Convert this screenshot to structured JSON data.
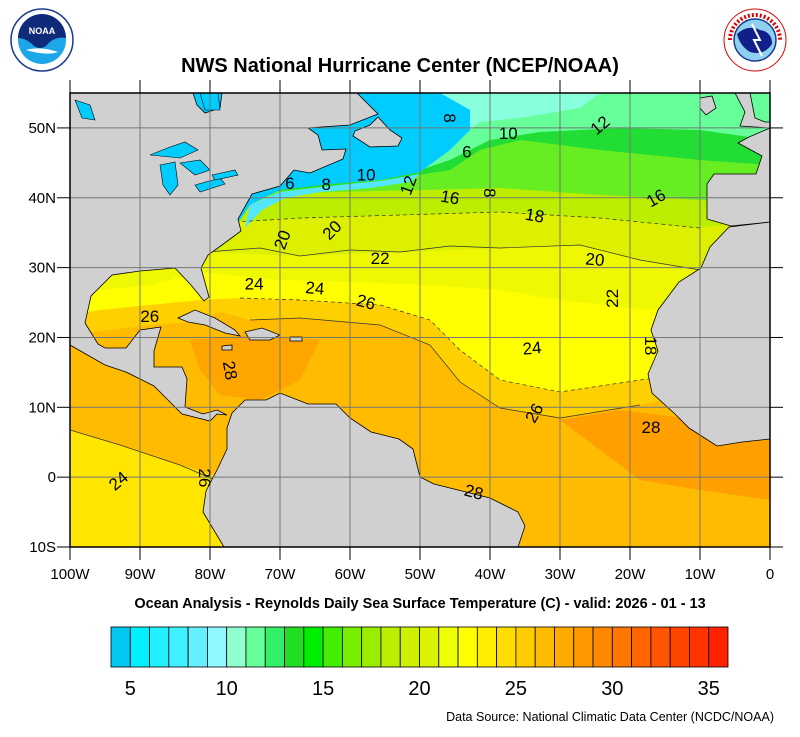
{
  "header": {
    "title": "NWS National Hurricane Center (NCEP/NOAA)",
    "left_logo": {
      "icon": "noaa-logo",
      "text": "NOAA"
    },
    "right_logo": {
      "icon": "nws-logo",
      "text": "NATIONAL WEATHER SERVICE"
    }
  },
  "map": {
    "lon_range": [
      -100,
      0
    ],
    "lat_range": [
      -10,
      55
    ],
    "grid": true,
    "land_color": "#d0d0d0",
    "lat_labels": [
      "50N",
      "40N",
      "30N",
      "20N",
      "10N",
      "0",
      "10S"
    ],
    "lat_values": [
      50,
      40,
      30,
      20,
      10,
      0,
      -10
    ],
    "lon_labels": [
      "100W",
      "90W",
      "80W",
      "70W",
      "60W",
      "50W",
      "40W",
      "30W",
      "20W",
      "10W",
      "0"
    ],
    "lon_values": [
      -100,
      -90,
      -80,
      -70,
      -60,
      -50,
      -40,
      -30,
      -20,
      -10,
      0
    ],
    "contour_labels": [
      {
        "text": "8",
        "lon": -45.7,
        "lat": 51.4,
        "rot": 90
      },
      {
        "text": "10",
        "lon": -37.4,
        "lat": 49.3,
        "rot": 0
      },
      {
        "text": "12",
        "lon": -24.3,
        "lat": 50.4,
        "rot": -40
      },
      {
        "text": "6",
        "lon": -43.3,
        "lat": 46.6,
        "rot": 0
      },
      {
        "text": "6",
        "lon": -68.6,
        "lat": 42.1,
        "rot": 0
      },
      {
        "text": "8",
        "lon": -63.4,
        "lat": 42.0,
        "rot": 0
      },
      {
        "text": "10",
        "lon": -57.7,
        "lat": 43.3,
        "rot": 0
      },
      {
        "text": "12",
        "lon": -51.7,
        "lat": 41.8,
        "rot": -70
      },
      {
        "text": "16",
        "lon": -45.7,
        "lat": 40.1,
        "rot": 10
      },
      {
        "text": "8",
        "lon": -40.0,
        "lat": 40.7,
        "rot": 90
      },
      {
        "text": "16",
        "lon": -16.3,
        "lat": 40.0,
        "rot": -30
      },
      {
        "text": "18",
        "lon": -33.6,
        "lat": 37.5,
        "rot": 10
      },
      {
        "text": "20",
        "lon": -69.7,
        "lat": 34.0,
        "rot": -70
      },
      {
        "text": "20",
        "lon": -62.6,
        "lat": 35.4,
        "rot": -45
      },
      {
        "text": "22",
        "lon": -55.7,
        "lat": 31.4,
        "rot": 0
      },
      {
        "text": "20",
        "lon": -25.0,
        "lat": 31.2,
        "rot": 5
      },
      {
        "text": "24",
        "lon": -73.7,
        "lat": 27.7,
        "rot": 0
      },
      {
        "text": "24",
        "lon": -65.0,
        "lat": 27.1,
        "rot": 5
      },
      {
        "text": "26",
        "lon": -57.7,
        "lat": 25.1,
        "rot": 15
      },
      {
        "text": "22",
        "lon": -22.6,
        "lat": 25.6,
        "rot": -90
      },
      {
        "text": "26",
        "lon": -88.6,
        "lat": 23.1,
        "rot": 0
      },
      {
        "text": "24",
        "lon": -34.0,
        "lat": 18.5,
        "rot": -5
      },
      {
        "text": "28",
        "lon": -77.1,
        "lat": 15.3,
        "rot": 80
      },
      {
        "text": "18",
        "lon": -17.0,
        "lat": 18.8,
        "rot": 90
      },
      {
        "text": "26",
        "lon": -33.7,
        "lat": 9.2,
        "rot": -60
      },
      {
        "text": "28",
        "lon": -17.0,
        "lat": 7.2,
        "rot": 0
      },
      {
        "text": "24",
        "lon": -93.1,
        "lat": -0.5,
        "rot": -40
      },
      {
        "text": "26",
        "lon": -80.7,
        "lat": -0.1,
        "rot": 90
      },
      {
        "text": "28",
        "lon": -42.3,
        "lat": -2.1,
        "rot": 15
      }
    ]
  },
  "subtitle": "Ocean Analysis - Reynolds Daily Sea Surface Temperature (C) - valid: 2026 - 01 - 13",
  "colorbar": {
    "min": 4,
    "max": 36,
    "labels": [
      "5",
      "10",
      "15",
      "20",
      "25",
      "30",
      "35"
    ],
    "label_values": [
      5,
      10,
      15,
      20,
      25,
      30,
      35
    ],
    "colors": [
      "#00c8f0",
      "#00f0ff",
      "#20f0ff",
      "#40f0ff",
      "#66f0ff",
      "#90f8ff",
      "#90ffd0",
      "#66ff99",
      "#33ee66",
      "#22dd22",
      "#00ee00",
      "#44ee00",
      "#77ee00",
      "#99ee00",
      "#bbee00",
      "#ccf000",
      "#ddf200",
      "#eeff00",
      "#ffff00",
      "#ffee00",
      "#ffdd00",
      "#ffcc00",
      "#ffbb00",
      "#ffaa00",
      "#ff9900",
      "#ff8800",
      "#ff7700",
      "#ff6600",
      "#ff5500",
      "#ff4400",
      "#ff3300",
      "#ff2200"
    ]
  },
  "footer": {
    "source": "Data Source: National Climatic Data Center (NCDC/NOAA)"
  }
}
